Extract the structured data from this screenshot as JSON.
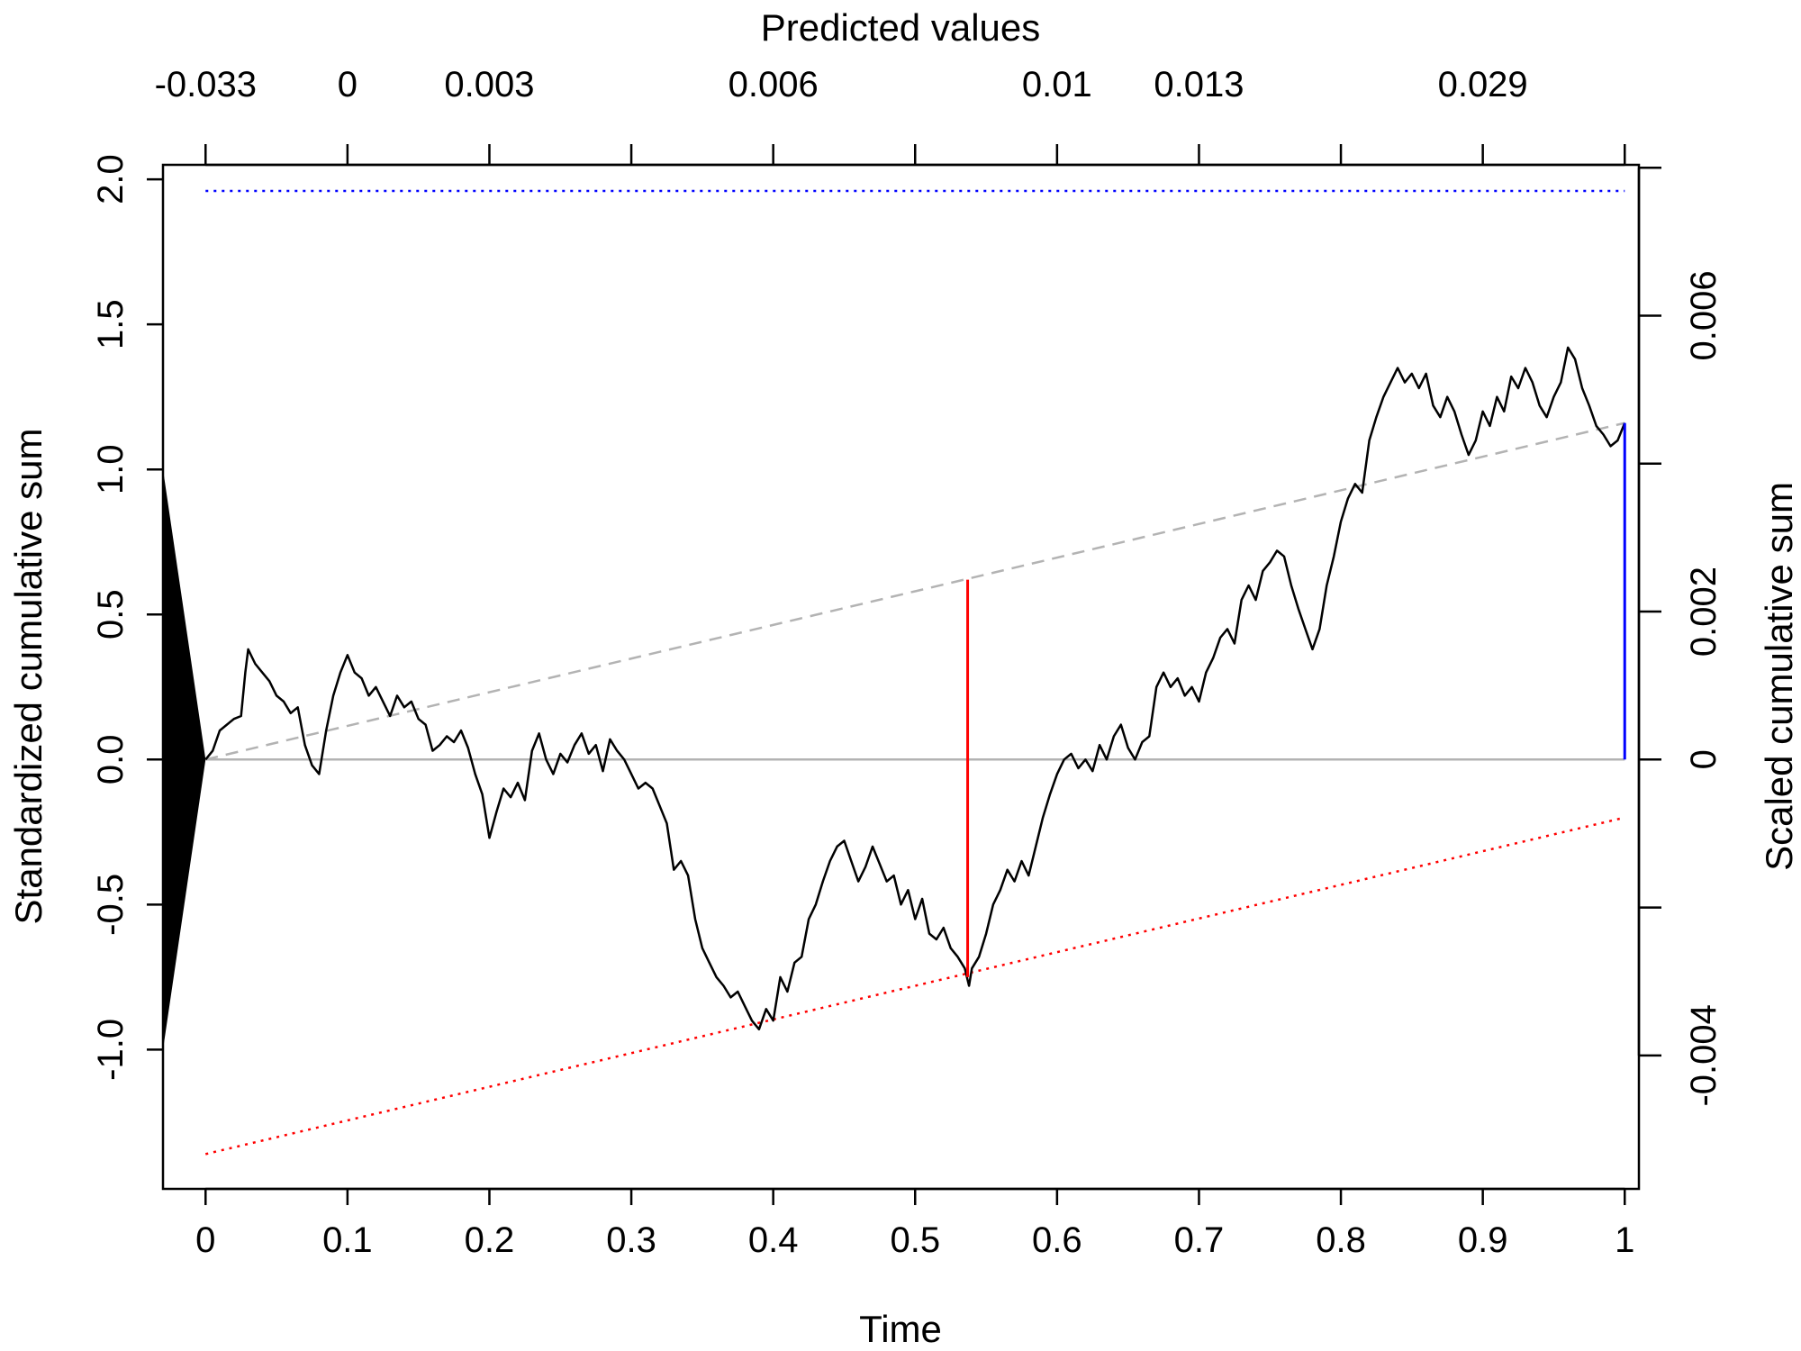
{
  "chart_data": {
    "type": "line",
    "xlabel": "Time",
    "ylabel": "Standardized cumulative sum",
    "ylabel_right": "Scaled cumulative sum",
    "xlabel_top": "Predicted values",
    "xlim": [
      -0.03,
      1.01
    ],
    "ylim": [
      -1.48,
      2.05
    ],
    "x_ticks": [
      "0",
      "0.1",
      "0.2",
      "0.3",
      "0.4",
      "0.5",
      "0.6",
      "0.7",
      "0.8",
      "0.9",
      "1"
    ],
    "y_ticks": [
      "-1.0",
      "-0.5",
      "0.0",
      "0.5",
      "1.0",
      "1.5",
      "2.0"
    ],
    "top_ticks": [
      {
        "t": 0.0,
        "label": "-0.033"
      },
      {
        "t": 0.1,
        "label": "0"
      },
      {
        "t": 0.2,
        "label": "0.003"
      },
      {
        "t": 0.3,
        "label": ""
      },
      {
        "t": 0.4,
        "label": "0.006"
      },
      {
        "t": 0.5,
        "label": ""
      },
      {
        "t": 0.6,
        "label": "0.01"
      },
      {
        "t": 0.7,
        "label": "0.013"
      },
      {
        "t": 0.8,
        "label": ""
      },
      {
        "t": 0.9,
        "label": "0.029"
      },
      {
        "t": 1.0,
        "label": ""
      }
    ],
    "right_ticks": [
      {
        "y": -1.02,
        "label": "-0.004"
      },
      {
        "y": -0.51,
        "label": ""
      },
      {
        "y": 0.0,
        "label": "0"
      },
      {
        "y": 0.51,
        "label": "0.002"
      },
      {
        "y": 1.02,
        "label": ""
      },
      {
        "y": 1.53,
        "label": "0.006"
      },
      {
        "y": 2.04,
        "label": ""
      }
    ],
    "cumsum_path": [
      [
        0.0,
        0.0
      ],
      [
        0.005,
        0.03
      ],
      [
        0.01,
        0.1
      ],
      [
        0.015,
        0.12
      ],
      [
        0.02,
        0.14
      ],
      [
        0.025,
        0.15
      ],
      [
        0.028,
        0.3
      ],
      [
        0.03,
        0.38
      ],
      [
        0.035,
        0.33
      ],
      [
        0.04,
        0.3
      ],
      [
        0.045,
        0.27
      ],
      [
        0.05,
        0.22
      ],
      [
        0.055,
        0.2
      ],
      [
        0.06,
        0.16
      ],
      [
        0.065,
        0.18
      ],
      [
        0.07,
        0.05
      ],
      [
        0.075,
        -0.02
      ],
      [
        0.08,
        -0.05
      ],
      [
        0.085,
        0.1
      ],
      [
        0.09,
        0.22
      ],
      [
        0.095,
        0.3
      ],
      [
        0.1,
        0.36
      ],
      [
        0.105,
        0.3
      ],
      [
        0.11,
        0.28
      ],
      [
        0.115,
        0.22
      ],
      [
        0.12,
        0.25
      ],
      [
        0.125,
        0.2
      ],
      [
        0.13,
        0.15
      ],
      [
        0.135,
        0.22
      ],
      [
        0.14,
        0.18
      ],
      [
        0.145,
        0.2
      ],
      [
        0.15,
        0.14
      ],
      [
        0.155,
        0.12
      ],
      [
        0.16,
        0.03
      ],
      [
        0.165,
        0.05
      ],
      [
        0.17,
        0.08
      ],
      [
        0.175,
        0.06
      ],
      [
        0.18,
        0.1
      ],
      [
        0.185,
        0.04
      ],
      [
        0.19,
        -0.05
      ],
      [
        0.195,
        -0.12
      ],
      [
        0.2,
        -0.27
      ],
      [
        0.205,
        -0.18
      ],
      [
        0.21,
        -0.1
      ],
      [
        0.215,
        -0.13
      ],
      [
        0.22,
        -0.08
      ],
      [
        0.225,
        -0.14
      ],
      [
        0.23,
        0.03
      ],
      [
        0.235,
        0.09
      ],
      [
        0.24,
        0.0
      ],
      [
        0.245,
        -0.05
      ],
      [
        0.25,
        0.02
      ],
      [
        0.255,
        -0.01
      ],
      [
        0.26,
        0.05
      ],
      [
        0.265,
        0.09
      ],
      [
        0.27,
        0.02
      ],
      [
        0.275,
        0.05
      ],
      [
        0.28,
        -0.04
      ],
      [
        0.285,
        0.07
      ],
      [
        0.29,
        0.03
      ],
      [
        0.295,
        0.0
      ],
      [
        0.3,
        -0.05
      ],
      [
        0.305,
        -0.1
      ],
      [
        0.31,
        -0.08
      ],
      [
        0.315,
        -0.1
      ],
      [
        0.32,
        -0.16
      ],
      [
        0.325,
        -0.22
      ],
      [
        0.33,
        -0.38
      ],
      [
        0.335,
        -0.35
      ],
      [
        0.34,
        -0.4
      ],
      [
        0.345,
        -0.55
      ],
      [
        0.35,
        -0.65
      ],
      [
        0.355,
        -0.7
      ],
      [
        0.36,
        -0.75
      ],
      [
        0.365,
        -0.78
      ],
      [
        0.37,
        -0.82
      ],
      [
        0.375,
        -0.8
      ],
      [
        0.38,
        -0.85
      ],
      [
        0.385,
        -0.9
      ],
      [
        0.39,
        -0.93
      ],
      [
        0.395,
        -0.86
      ],
      [
        0.4,
        -0.9
      ],
      [
        0.405,
        -0.75
      ],
      [
        0.41,
        -0.8
      ],
      [
        0.415,
        -0.7
      ],
      [
        0.42,
        -0.68
      ],
      [
        0.425,
        -0.55
      ],
      [
        0.43,
        -0.5
      ],
      [
        0.435,
        -0.42
      ],
      [
        0.44,
        -0.35
      ],
      [
        0.445,
        -0.3
      ],
      [
        0.45,
        -0.28
      ],
      [
        0.455,
        -0.35
      ],
      [
        0.46,
        -0.42
      ],
      [
        0.465,
        -0.37
      ],
      [
        0.47,
        -0.3
      ],
      [
        0.475,
        -0.36
      ],
      [
        0.48,
        -0.42
      ],
      [
        0.485,
        -0.4
      ],
      [
        0.49,
        -0.5
      ],
      [
        0.495,
        -0.45
      ],
      [
        0.5,
        -0.55
      ],
      [
        0.505,
        -0.48
      ],
      [
        0.51,
        -0.6
      ],
      [
        0.515,
        -0.62
      ],
      [
        0.52,
        -0.58
      ],
      [
        0.525,
        -0.65
      ],
      [
        0.53,
        -0.68
      ],
      [
        0.535,
        -0.72
      ],
      [
        0.538,
        -0.78
      ],
      [
        0.54,
        -0.72
      ],
      [
        0.545,
        -0.68
      ],
      [
        0.55,
        -0.6
      ],
      [
        0.555,
        -0.5
      ],
      [
        0.56,
        -0.45
      ],
      [
        0.565,
        -0.38
      ],
      [
        0.57,
        -0.42
      ],
      [
        0.575,
        -0.35
      ],
      [
        0.58,
        -0.4
      ],
      [
        0.585,
        -0.3
      ],
      [
        0.59,
        -0.2
      ],
      [
        0.595,
        -0.12
      ],
      [
        0.6,
        -0.05
      ],
      [
        0.605,
        0.0
      ],
      [
        0.61,
        0.02
      ],
      [
        0.615,
        -0.03
      ],
      [
        0.62,
        0.0
      ],
      [
        0.625,
        -0.04
      ],
      [
        0.63,
        0.05
      ],
      [
        0.635,
        0.0
      ],
      [
        0.64,
        0.08
      ],
      [
        0.645,
        0.12
      ],
      [
        0.65,
        0.04
      ],
      [
        0.655,
        0.0
      ],
      [
        0.66,
        0.06
      ],
      [
        0.665,
        0.08
      ],
      [
        0.67,
        0.25
      ],
      [
        0.675,
        0.3
      ],
      [
        0.68,
        0.25
      ],
      [
        0.685,
        0.28
      ],
      [
        0.69,
        0.22
      ],
      [
        0.695,
        0.25
      ],
      [
        0.7,
        0.2
      ],
      [
        0.705,
        0.3
      ],
      [
        0.71,
        0.35
      ],
      [
        0.715,
        0.42
      ],
      [
        0.72,
        0.45
      ],
      [
        0.725,
        0.4
      ],
      [
        0.73,
        0.55
      ],
      [
        0.735,
        0.6
      ],
      [
        0.74,
        0.55
      ],
      [
        0.745,
        0.65
      ],
      [
        0.75,
        0.68
      ],
      [
        0.755,
        0.72
      ],
      [
        0.76,
        0.7
      ],
      [
        0.765,
        0.6
      ],
      [
        0.77,
        0.52
      ],
      [
        0.775,
        0.45
      ],
      [
        0.78,
        0.38
      ],
      [
        0.785,
        0.45
      ],
      [
        0.79,
        0.6
      ],
      [
        0.795,
        0.7
      ],
      [
        0.8,
        0.82
      ],
      [
        0.805,
        0.9
      ],
      [
        0.81,
        0.95
      ],
      [
        0.815,
        0.92
      ],
      [
        0.82,
        1.1
      ],
      [
        0.825,
        1.18
      ],
      [
        0.83,
        1.25
      ],
      [
        0.835,
        1.3
      ],
      [
        0.84,
        1.35
      ],
      [
        0.845,
        1.3
      ],
      [
        0.85,
        1.33
      ],
      [
        0.855,
        1.28
      ],
      [
        0.86,
        1.33
      ],
      [
        0.865,
        1.22
      ],
      [
        0.87,
        1.18
      ],
      [
        0.875,
        1.25
      ],
      [
        0.88,
        1.2
      ],
      [
        0.885,
        1.12
      ],
      [
        0.89,
        1.05
      ],
      [
        0.895,
        1.1
      ],
      [
        0.9,
        1.2
      ],
      [
        0.905,
        1.15
      ],
      [
        0.91,
        1.25
      ],
      [
        0.915,
        1.2
      ],
      [
        0.92,
        1.32
      ],
      [
        0.925,
        1.28
      ],
      [
        0.93,
        1.35
      ],
      [
        0.935,
        1.3
      ],
      [
        0.94,
        1.22
      ],
      [
        0.945,
        1.18
      ],
      [
        0.95,
        1.25
      ],
      [
        0.955,
        1.3
      ],
      [
        0.96,
        1.42
      ],
      [
        0.965,
        1.38
      ],
      [
        0.97,
        1.28
      ],
      [
        0.975,
        1.22
      ],
      [
        0.98,
        1.15
      ],
      [
        0.985,
        1.12
      ],
      [
        0.99,
        1.08
      ],
      [
        0.995,
        1.1
      ],
      [
        1.0,
        1.16
      ]
    ],
    "trend_line": {
      "x": [
        0.0,
        1.0
      ],
      "y": [
        0.0,
        1.16
      ],
      "color": "#b3b3b3",
      "style": "dashed"
    },
    "zero_line": {
      "y": 0.0,
      "color": "#b3b3b3"
    },
    "upper_bound": {
      "y": 1.96,
      "color": "#0000ff",
      "style": "dotted"
    },
    "lower_bound": {
      "x": [
        0.0,
        1.0
      ],
      "y": [
        -1.36,
        -0.2
      ],
      "color": "#ff0000",
      "style": "dotted"
    },
    "max_deviation": {
      "x": 0.537,
      "y_from": -0.75,
      "y_to": 0.62,
      "color": "#ff0000"
    },
    "end_segment": {
      "x": 1.0,
      "y_from": 0.0,
      "y_to": 1.16,
      "color": "#0000ff"
    },
    "variance_wedge": {
      "x0": -0.03,
      "half_height": 1.0,
      "color": "#000000"
    }
  }
}
